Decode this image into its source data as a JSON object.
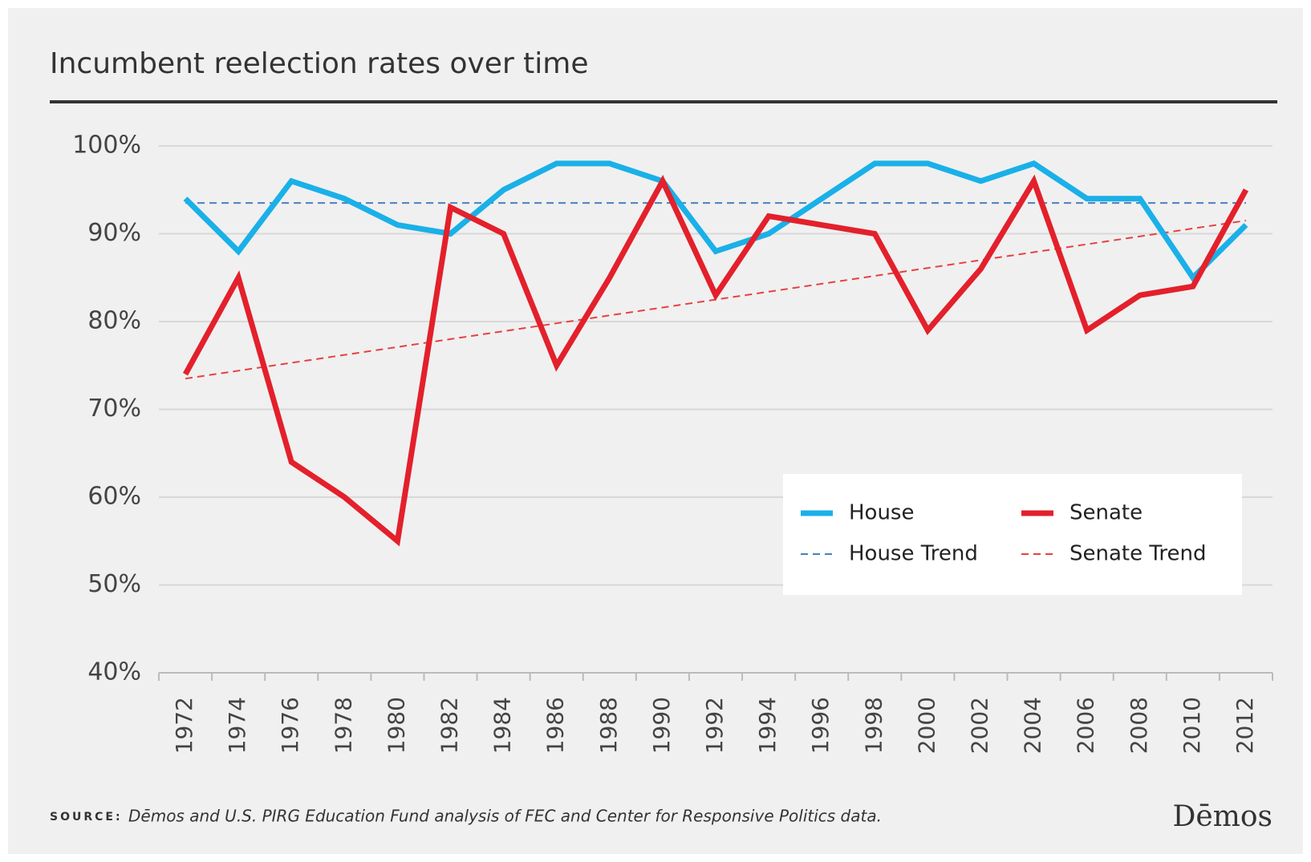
{
  "chart_data": {
    "type": "line",
    "title": "Incumbent reelection rates over time",
    "categories": [
      "1972",
      "1974",
      "1976",
      "1978",
      "1980",
      "1982",
      "1984",
      "1986",
      "1988",
      "1990",
      "1992",
      "1994",
      "1996",
      "1998",
      "2000",
      "2002",
      "2004",
      "2006",
      "2008",
      "2010",
      "2012"
    ],
    "series": [
      {
        "name": "House",
        "color": "#1ab0e8",
        "dashed": false,
        "values": [
          94,
          88,
          96,
          94,
          91,
          90,
          95,
          98,
          98,
          96,
          88,
          90,
          94,
          98,
          98,
          96,
          98,
          94,
          94,
          85,
          91
        ]
      },
      {
        "name": "Senate",
        "color": "#e3202b",
        "dashed": false,
        "values": [
          74,
          85,
          64,
          60,
          55,
          93,
          90,
          75,
          85,
          96,
          83,
          92,
          91,
          90,
          79,
          86,
          96,
          79,
          83,
          84,
          95
        ]
      },
      {
        "name": "House Trend",
        "color": "#4a7fc0",
        "dashed": true,
        "values": [
          93.5,
          93.5,
          93.5,
          93.5,
          93.5,
          93.5,
          93.5,
          93.5,
          93.5,
          93.5,
          93.5,
          93.5,
          93.5,
          93.5,
          93.5,
          93.5,
          93.5,
          93.5,
          93.5,
          93.5,
          93.5
        ]
      },
      {
        "name": "Senate Trend",
        "color": "#e84040",
        "dashed": true,
        "values": [
          73.5,
          74.4,
          75.3,
          76.2,
          77.1,
          78.0,
          78.9,
          79.8,
          80.7,
          81.6,
          82.5,
          83.4,
          84.3,
          85.2,
          86.1,
          87.0,
          87.9,
          88.8,
          89.7,
          90.6,
          91.5
        ]
      }
    ],
    "ylim": [
      40,
      100
    ],
    "yticks": [
      {
        "value": 40,
        "label": "40%"
      },
      {
        "value": 50,
        "label": "50%"
      },
      {
        "value": 60,
        "label": "60%"
      },
      {
        "value": 70,
        "label": "70%"
      },
      {
        "value": 80,
        "label": "80%"
      },
      {
        "value": 90,
        "label": "90%"
      },
      {
        "value": 100,
        "label": "100%"
      }
    ],
    "grid": true,
    "legend_position": "lower right",
    "source_label": "SOURCE:",
    "source": "Dēmos and U.S. PIRG Education Fund analysis of FEC and Center for Responsive Politics data.",
    "logo": "Dēmos"
  }
}
